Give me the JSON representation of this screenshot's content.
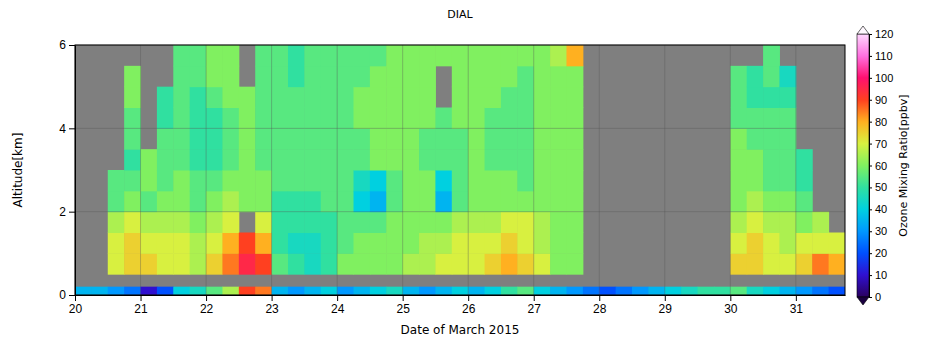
{
  "chart_data": {
    "type": "heatmap",
    "title": "DIAL",
    "x_label": "Date of March 2015",
    "y_label": "Altitude[km]",
    "xlim": [
      20,
      31.75
    ],
    "xticks": [
      20,
      21,
      22,
      23,
      24,
      25,
      26,
      27,
      28,
      29,
      30,
      31
    ],
    "ylim": [
      0,
      6
    ],
    "yticks": [
      0,
      2,
      4,
      6
    ],
    "grid": true,
    "x": [
      20.5,
      20.75,
      21,
      21.25,
      21.5,
      21.75,
      22,
      22.25,
      22.5,
      22.75,
      23,
      23.25,
      23.5,
      23.75,
      24,
      24.25,
      24.5,
      24.75,
      25,
      25.25,
      25.5,
      25.75,
      26,
      26.25,
      26.5,
      26.75,
      27,
      27.25,
      27.5,
      27.75,
      28,
      28.25,
      28.5,
      28.75,
      29,
      29.25,
      29.5,
      29.75,
      30,
      30.25,
      30.5,
      30.75,
      31,
      31.25,
      31.5
    ],
    "y": [
      0.5,
      1,
      1.5,
      2,
      2.5,
      3,
      3.5,
      4,
      4.5,
      5,
      5.5
    ],
    "cells": [
      [
        70,
        70,
        65,
        55,
        55,
        null,
        null,
        null,
        null,
        null,
        null
      ],
      [
        75,
        75,
        70,
        60,
        55,
        50,
        55,
        55,
        60,
        60,
        null
      ],
      [
        75,
        70,
        65,
        55,
        60,
        60,
        null,
        null,
        null,
        null,
        null
      ],
      [
        70,
        70,
        65,
        60,
        55,
        55,
        55,
        50,
        50,
        null,
        null
      ],
      [
        70,
        70,
        65,
        60,
        60,
        55,
        55,
        55,
        55,
        55,
        55
      ],
      [
        65,
        65,
        60,
        55,
        55,
        50,
        50,
        50,
        50,
        55,
        55
      ],
      [
        75,
        70,
        65,
        60,
        55,
        50,
        50,
        50,
        55,
        60,
        60
      ],
      [
        85,
        80,
        70,
        65,
        60,
        55,
        55,
        55,
        60,
        60,
        60
      ],
      [
        95,
        90,
        null,
        60,
        60,
        60,
        60,
        60,
        60,
        null,
        null
      ],
      [
        90,
        80,
        70,
        60,
        60,
        55,
        55,
        55,
        55,
        55,
        55
      ],
      [
        55,
        50,
        50,
        50,
        55,
        55,
        55,
        55,
        55,
        55,
        55
      ],
      [
        50,
        45,
        50,
        50,
        55,
        55,
        55,
        55,
        55,
        50,
        50
      ],
      [
        45,
        45,
        50,
        50,
        55,
        55,
        55,
        55,
        55,
        55,
        55
      ],
      [
        50,
        50,
        50,
        55,
        55,
        55,
        55,
        55,
        55,
        55,
        55
      ],
      [
        60,
        55,
        55,
        55,
        55,
        55,
        55,
        55,
        55,
        55,
        55
      ],
      [
        60,
        60,
        55,
        40,
        45,
        55,
        55,
        60,
        60,
        55,
        55
      ],
      [
        60,
        60,
        55,
        35,
        40,
        60,
        60,
        60,
        60,
        60,
        55
      ],
      [
        60,
        60,
        60,
        55,
        55,
        60,
        60,
        60,
        60,
        60,
        60
      ],
      [
        65,
        60,
        60,
        60,
        60,
        60,
        60,
        60,
        60,
        60,
        60
      ],
      [
        65,
        65,
        60,
        60,
        60,
        55,
        55,
        60,
        60,
        60,
        60
      ],
      [
        70,
        65,
        60,
        35,
        40,
        55,
        55,
        55,
        null,
        null,
        60
      ],
      [
        70,
        70,
        65,
        55,
        55,
        55,
        55,
        60,
        60,
        60,
        60
      ],
      [
        70,
        70,
        65,
        60,
        60,
        60,
        60,
        60,
        60,
        60,
        60
      ],
      [
        75,
        70,
        65,
        60,
        60,
        55,
        55,
        55,
        60,
        60,
        60
      ],
      [
        80,
        75,
        70,
        60,
        60,
        55,
        55,
        55,
        55,
        60,
        60
      ],
      [
        75,
        70,
        70,
        60,
        55,
        55,
        55,
        55,
        55,
        55,
        60
      ],
      [
        70,
        65,
        65,
        60,
        60,
        60,
        60,
        60,
        60,
        60,
        60
      ],
      [
        60,
        60,
        60,
        60,
        60,
        60,
        60,
        60,
        60,
        60,
        65
      ],
      [
        60,
        60,
        60,
        60,
        60,
        60,
        60,
        60,
        60,
        60,
        80
      ],
      [
        null,
        null,
        null,
        null,
        null,
        null,
        null,
        null,
        null,
        null,
        null
      ],
      [
        null,
        null,
        null,
        null,
        null,
        null,
        null,
        null,
        null,
        null,
        null
      ],
      [
        null,
        null,
        null,
        null,
        null,
        null,
        null,
        null,
        null,
        null,
        null
      ],
      [
        null,
        null,
        null,
        null,
        null,
        null,
        null,
        null,
        null,
        null,
        null
      ],
      [
        null,
        null,
        null,
        null,
        null,
        null,
        null,
        null,
        null,
        null,
        null
      ],
      [
        null,
        null,
        null,
        null,
        null,
        null,
        null,
        null,
        null,
        null,
        null
      ],
      [
        null,
        null,
        null,
        null,
        null,
        null,
        null,
        null,
        null,
        null,
        null
      ],
      [
        null,
        null,
        null,
        null,
        null,
        null,
        null,
        null,
        null,
        null,
        null
      ],
      [
        null,
        null,
        null,
        null,
        null,
        null,
        null,
        null,
        null,
        null,
        null
      ],
      [
        75,
        70,
        65,
        60,
        60,
        60,
        60,
        55,
        55,
        55,
        null
      ],
      [
        75,
        75,
        70,
        65,
        60,
        60,
        55,
        55,
        50,
        50,
        null
      ],
      [
        70,
        70,
        65,
        60,
        55,
        55,
        55,
        55,
        50,
        55,
        55
      ],
      [
        70,
        65,
        65,
        60,
        55,
        55,
        55,
        55,
        50,
        45,
        null
      ],
      [
        75,
        70,
        60,
        55,
        50,
        50,
        null,
        null,
        null,
        null,
        null
      ],
      [
        85,
        70,
        65,
        null,
        null,
        null,
        null,
        null,
        null,
        null,
        null
      ],
      [
        80,
        70,
        null,
        null,
        null,
        null,
        null,
        null,
        null,
        null,
        null
      ]
    ],
    "surface": {
      "ylim": [
        0,
        0.2
      ],
      "x": [
        20,
        20.25,
        20.5,
        20.75,
        21,
        21.25,
        21.5,
        21.75,
        22,
        22.25,
        22.5,
        22.75,
        23,
        23.25,
        23.5,
        23.75,
        24,
        24.25,
        24.5,
        24.75,
        25,
        25.25,
        25.5,
        25.75,
        26,
        26.25,
        26.5,
        26.75,
        27,
        27.25,
        27.5,
        27.75,
        28,
        28.25,
        28.5,
        28.75,
        29,
        29.25,
        29.5,
        29.75,
        30,
        30.25,
        30.5,
        30.75,
        31,
        31.25,
        31.5
      ],
      "values": [
        35,
        35,
        30,
        25,
        10,
        20,
        40,
        45,
        55,
        65,
        90,
        85,
        35,
        30,
        35,
        40,
        30,
        35,
        40,
        45,
        35,
        30,
        35,
        40,
        35,
        40,
        50,
        55,
        40,
        35,
        30,
        25,
        20,
        25,
        30,
        35,
        40,
        45,
        50,
        50,
        55,
        45,
        40,
        35,
        30,
        25,
        20
      ]
    },
    "colorbar": {
      "label": "Ozone Mixing Ratio[ppbv]",
      "range": [
        0,
        120
      ],
      "ticks": [
        0,
        10,
        20,
        30,
        40,
        50,
        60,
        70,
        80,
        90,
        100,
        110,
        120
      ]
    }
  }
}
